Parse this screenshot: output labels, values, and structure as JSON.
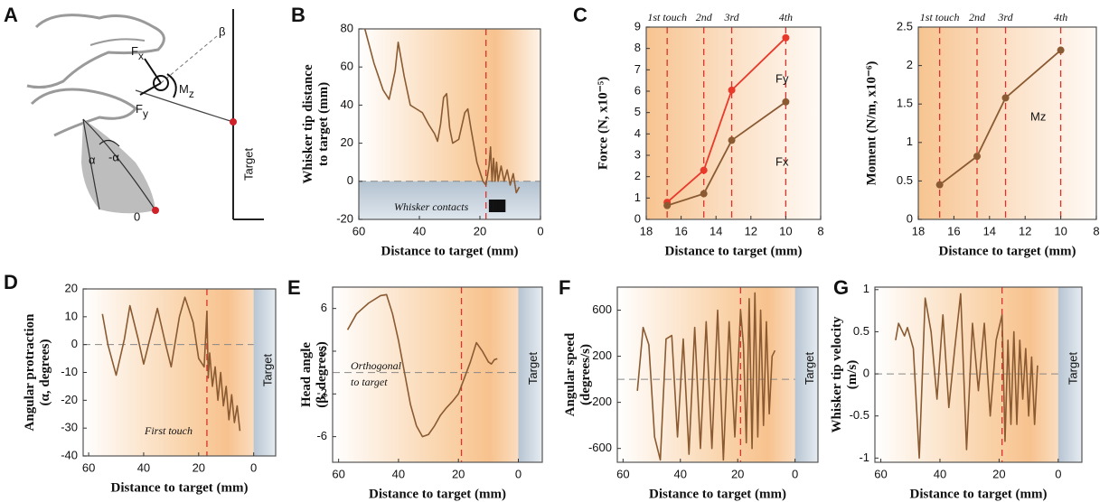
{
  "panel_labels": [
    "A",
    "B",
    "C",
    "D",
    "E",
    "F",
    "G"
  ],
  "diagram": {
    "labels": [
      "F",
      "x",
      "β",
      "M",
      "z",
      "F",
      "y",
      "α",
      "-α",
      "0",
      "Target"
    ]
  },
  "chart_data": [
    {
      "type": "line",
      "xlabel": "Distance to target (mm)",
      "ylabel": [
        "Whisker tip distance",
        "to target (mm)"
      ],
      "xlim": [
        60,
        0
      ],
      "xticks": [
        60,
        40,
        20,
        0
      ],
      "ylim": [
        -20,
        80
      ],
      "yticks": [
        -20,
        0,
        20,
        40,
        60,
        80
      ],
      "color": "#8a5a32",
      "hline": 0,
      "below_shade": true,
      "vlines": [
        18
      ],
      "contact_x": [
        16.3,
        14.9,
        13.5,
        12.3
      ],
      "annotations": [
        "Whisker contacts"
      ],
      "x": [
        58,
        55,
        52,
        50,
        48,
        47,
        45,
        43,
        41,
        39,
        37,
        35,
        34,
        33,
        32,
        31,
        30,
        29,
        27,
        25,
        24,
        23,
        21,
        19,
        18,
        17,
        16.5,
        16,
        15.5,
        15,
        14.5,
        14,
        13,
        12,
        11,
        10,
        9,
        8,
        7
      ],
      "values": [
        80,
        62,
        48,
        43,
        58,
        73,
        55,
        40,
        38,
        36,
        30,
        25,
        21,
        30,
        44,
        46,
        28,
        20,
        22,
        36,
        38,
        28,
        10,
        0,
        -2,
        8,
        18,
        0,
        12,
        0,
        10,
        0,
        8,
        0,
        6,
        -2,
        4,
        -6,
        -3
      ]
    },
    {
      "type": "line-markers",
      "xlabel": "Distance to target (mm)",
      "ylabel": [
        "Force (N, x10⁻⁵)"
      ],
      "xlim": [
        18,
        8
      ],
      "xticks": [
        18,
        16,
        14,
        12,
        10,
        8
      ],
      "ylim": [
        0,
        9
      ],
      "yticks": [
        0,
        1,
        2,
        3,
        4,
        5,
        6,
        7,
        8,
        9
      ],
      "vlines": [
        16.8,
        14.7,
        13.1,
        10
      ],
      "touch_labels": [
        "1st touch",
        "2nd",
        "3rd",
        "4th"
      ],
      "x": [
        16.8,
        14.7,
        13.1,
        10
      ],
      "series": [
        {
          "name": "Fy",
          "color": "#e8392b",
          "values": [
            0.8,
            2.3,
            6.05,
            8.5
          ]
        },
        {
          "name": "Fx",
          "color": "#8a5a32",
          "values": [
            0.65,
            1.2,
            3.7,
            5.5
          ]
        }
      ]
    },
    {
      "type": "line-markers",
      "xlabel": "Distance to target (mm)",
      "ylabel": [
        "Moment (N/m, x10⁻⁶)"
      ],
      "xlim": [
        18,
        8
      ],
      "xticks": [
        18,
        16,
        14,
        12,
        10,
        8
      ],
      "ylim": [
        0,
        2.5
      ],
      "yticks": [
        0,
        0.5,
        1,
        1.5,
        2,
        2.5
      ],
      "vlines": [
        16.8,
        14.7,
        13.1,
        10
      ],
      "touch_labels": [
        "1st touch",
        "2nd",
        "3rd",
        "4th"
      ],
      "x": [
        16.8,
        14.7,
        13.1,
        10
      ],
      "series": [
        {
          "name": "Mz",
          "color": "#8a5a32",
          "values": [
            0.45,
            0.82,
            1.58,
            2.2
          ]
        }
      ]
    },
    {
      "type": "line",
      "xlabel": "Distance to target (mm)",
      "ylabel": [
        "Angular protraction",
        "(α, degrees)"
      ],
      "xlim": [
        62,
        -8
      ],
      "xticks": [
        60,
        40,
        20,
        0
      ],
      "ylim": [
        -40,
        20
      ],
      "yticks": [
        -40,
        -30,
        -20,
        -10,
        0,
        10,
        20
      ],
      "color": "#8a5a32",
      "hline": 0,
      "vlines": [
        17
      ],
      "target_x": 0,
      "target_label": "Target",
      "annotations": [
        "First touch"
      ],
      "x": [
        55,
        53,
        50,
        47,
        45,
        42,
        40,
        37,
        35,
        32,
        30,
        27,
        25,
        22,
        20,
        18,
        17,
        16.5,
        16,
        15,
        14,
        13,
        12,
        11,
        10,
        9,
        8,
        7,
        6,
        5
      ],
      "values": [
        11,
        0,
        -11,
        2,
        14,
        2,
        -7,
        5,
        13,
        0,
        -8,
        10,
        17,
        8,
        -5,
        -8,
        12,
        -12,
        -3,
        -15,
        -8,
        -20,
        -10,
        -22,
        -15,
        -27,
        -18,
        -28,
        -22,
        -31
      ]
    },
    {
      "type": "line",
      "xlabel": "Distance to target (mm)",
      "ylabel": [
        "Head angle",
        "(β, degrees)"
      ],
      "xlim": [
        62,
        -8
      ],
      "xticks": [
        60,
        40,
        20,
        0
      ],
      "ylim": [
        -8.4,
        8
      ],
      "yticks": [
        -6,
        -2,
        2,
        6
      ],
      "color": "#8a5a32",
      "hline": 0,
      "vlines": [
        19
      ],
      "target_x": 0,
      "target_label": "Target",
      "annotations": [
        "Orthogonal",
        "to target"
      ],
      "x": [
        57,
        54,
        50,
        46,
        44,
        42,
        40,
        38,
        36,
        34,
        32,
        30,
        28,
        26,
        24,
        22,
        20,
        18,
        16,
        14,
        12,
        11,
        10,
        9,
        8,
        7
      ],
      "values": [
        4,
        5.5,
        6.5,
        7.2,
        7.3,
        5.5,
        3,
        0,
        -3,
        -5,
        -6,
        -5.8,
        -5,
        -4,
        -3.3,
        -2.7,
        -2,
        -0.5,
        1,
        2.8,
        2,
        1.5,
        1,
        0.8,
        1.2,
        1.3
      ]
    },
    {
      "type": "line",
      "xlabel": "Distance to target (mm)",
      "ylabel": [
        "Angular speed",
        "(degrees/s)"
      ],
      "xlim": [
        62,
        -8
      ],
      "xticks": [
        60,
        40,
        20,
        0
      ],
      "ylim": [
        -720,
        800
      ],
      "yticks": [
        -600,
        -200,
        200,
        600
      ],
      "color": "#8a5a32",
      "hline": 0,
      "vlines": [
        19
      ],
      "target_x": 0,
      "target_label": "Target",
      "x": [
        55,
        53,
        51,
        49,
        47,
        45,
        43,
        41,
        39,
        37,
        35,
        33,
        31,
        29,
        27,
        25,
        23,
        21,
        19,
        18,
        17,
        16,
        15,
        14,
        13,
        12,
        11,
        10,
        9,
        8,
        7
      ],
      "values": [
        -100,
        450,
        300,
        -500,
        -700,
        350,
        380,
        -500,
        350,
        -650,
        450,
        -600,
        500,
        -600,
        600,
        -700,
        500,
        -500,
        600,
        300,
        -550,
        700,
        -600,
        750,
        -500,
        600,
        -400,
        500,
        -300,
        200,
        250
      ]
    },
    {
      "type": "line",
      "xlabel": "Distance to target (mm)",
      "ylabel": [
        "Whisker tip velocity",
        "(m/s)"
      ],
      "xlim": [
        62,
        -8
      ],
      "xticks": [
        60,
        40,
        20,
        0
      ],
      "ylim": [
        -1.05,
        1.03
      ],
      "yticks": [
        -1,
        -0.5,
        0,
        0.5,
        1
      ],
      "color": "#8a5a32",
      "hline": 0,
      "vlines": [
        19
      ],
      "target_x": 0,
      "target_label": "Target",
      "x": [
        55,
        54,
        52,
        51,
        49,
        47,
        45,
        43,
        41,
        39,
        37,
        35,
        33,
        31,
        29,
        27,
        25,
        23,
        21,
        19,
        18,
        17,
        16,
        15,
        14,
        13,
        12,
        11,
        10,
        9,
        8,
        7
      ],
      "values": [
        0.4,
        0.6,
        0.45,
        0.55,
        0.3,
        -1,
        0.9,
        0.5,
        -0.3,
        0.7,
        -0.4,
        0.3,
        0.95,
        -0.9,
        0.6,
        -0.2,
        0.6,
        -0.5,
        0.4,
        0.7,
        -0.8,
        0.4,
        -0.6,
        0.5,
        -0.6,
        0.4,
        -0.3,
        0.3,
        -0.5,
        0.2,
        -0.6,
        0.1
      ]
    }
  ]
}
